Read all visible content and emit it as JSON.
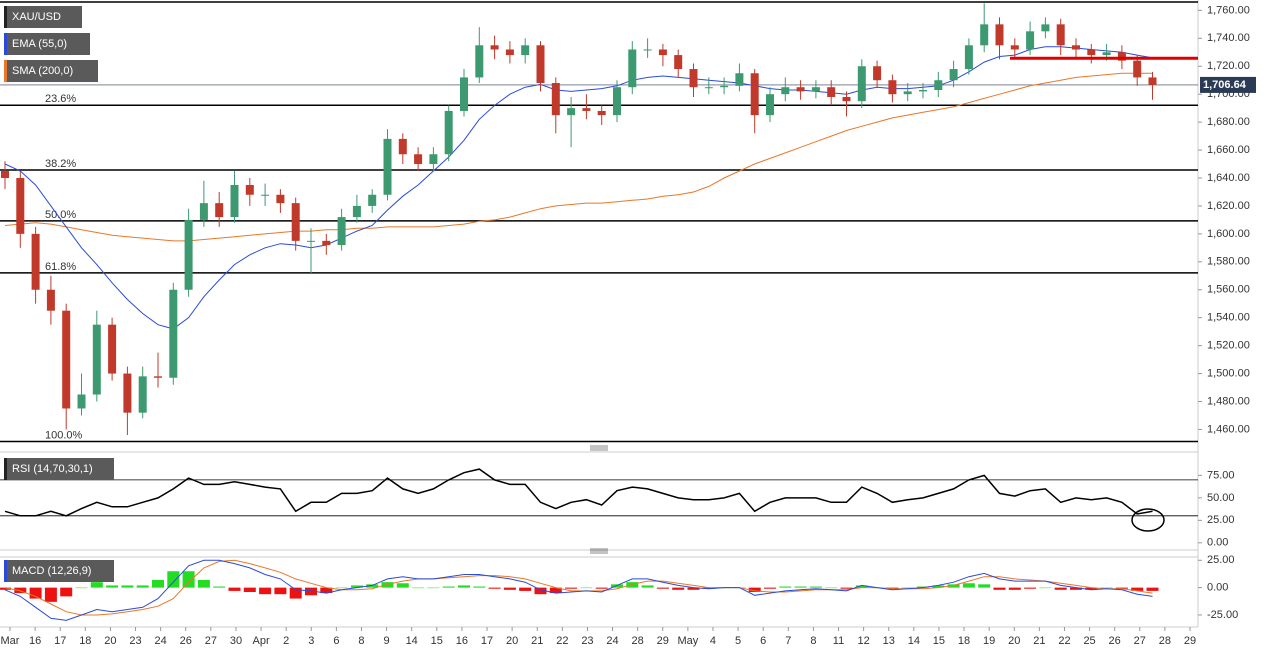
{
  "chart_data": {
    "type": "candlestick",
    "title": "XAU/USD",
    "up_color": "#3d9970",
    "down_color": "#c0392b",
    "ylim": [
      1451,
      1766
    ],
    "yticks": [
      {
        "value": 1460,
        "label": "1,460.00"
      },
      {
        "value": 1480,
        "label": "1,480.00"
      },
      {
        "value": 1500,
        "label": "1,500.00"
      },
      {
        "value": 1520,
        "label": "1,520.00"
      },
      {
        "value": 1540,
        "label": "1,540.00"
      },
      {
        "value": 1560,
        "label": "1,560.00"
      },
      {
        "value": 1580,
        "label": "1,580.00"
      },
      {
        "value": 1600,
        "label": "1,600.00"
      },
      {
        "value": 1620,
        "label": "1,620.00"
      },
      {
        "value": 1640,
        "label": "1,640.00"
      },
      {
        "value": 1660,
        "label": "1,660.00"
      },
      {
        "value": 1680,
        "label": "1,680.00"
      },
      {
        "value": 1700,
        "label": "1,700.00"
      },
      {
        "value": 1720,
        "label": "1,720.00"
      },
      {
        "value": 1740,
        "label": "1,740.00"
      },
      {
        "value": 1760,
        "label": "1,760.00"
      }
    ],
    "categories": [
      "Mar",
      "16",
      "17",
      "18",
      "20",
      "23",
      "24",
      "26",
      "27",
      "30",
      "Apr",
      "2",
      "3",
      "6",
      "8",
      "9",
      "14",
      "15",
      "16",
      "17",
      "20",
      "21",
      "22",
      "23",
      "24",
      "28",
      "29",
      "May",
      "4",
      "5",
      "6",
      "7",
      "8",
      "11",
      "12",
      "13",
      "14",
      "15",
      "18",
      "19",
      "20",
      "21",
      "22",
      "25",
      "26",
      "27",
      "28",
      "29"
    ],
    "last_price": {
      "value": 1706.64,
      "label": "1,706.64"
    },
    "resistance": {
      "value": 1725.7,
      "color": "#e00000"
    },
    "fib_levels": [
      {
        "value": 1766
      },
      {
        "value": 1692.1,
        "label": "23.6%"
      },
      {
        "value": 1645.7,
        "label": "38.2%"
      },
      {
        "value": 1609.3,
        "label": "50.0%"
      },
      {
        "value": 1572.1,
        "label": "61.8%"
      },
      {
        "value": 1451.4,
        "label": "100.0%"
      }
    ],
    "candles": [
      [
        1645,
        1652,
        1632,
        1640
      ],
      [
        1640,
        1645,
        1590,
        1600
      ],
      [
        1600,
        1605,
        1550,
        1560
      ],
      [
        1560,
        1570,
        1535,
        1545
      ],
      [
        1545,
        1550,
        1460,
        1475
      ],
      [
        1475,
        1500,
        1470,
        1485
      ],
      [
        1485,
        1545,
        1480,
        1535
      ],
      [
        1535,
        1540,
        1495,
        1500
      ],
      [
        1500,
        1505,
        1456,
        1472
      ],
      [
        1472,
        1505,
        1468,
        1498
      ],
      [
        1498,
        1515,
        1490,
        1497
      ],
      [
        1497,
        1565,
        1492,
        1560
      ],
      [
        1560,
        1618,
        1555,
        1610
      ],
      [
        1610,
        1638,
        1605,
        1622
      ],
      [
        1622,
        1630,
        1605,
        1612
      ],
      [
        1612,
        1645,
        1608,
        1635
      ],
      [
        1635,
        1640,
        1620,
        1628
      ],
      [
        1628,
        1636,
        1620,
        1628
      ],
      [
        1628,
        1632,
        1615,
        1622
      ],
      [
        1622,
        1626,
        1588,
        1595
      ],
      [
        1595,
        1604,
        1572,
        1595
      ],
      [
        1595,
        1600,
        1585,
        1592
      ],
      [
        1592,
        1618,
        1588,
        1612
      ],
      [
        1612,
        1628,
        1608,
        1620
      ],
      [
        1620,
        1632,
        1615,
        1628
      ],
      [
        1628,
        1675,
        1624,
        1668
      ],
      [
        1668,
        1672,
        1650,
        1657
      ],
      [
        1657,
        1662,
        1645,
        1650
      ],
      [
        1650,
        1662,
        1645,
        1657
      ],
      [
        1657,
        1692,
        1652,
        1688
      ],
      [
        1688,
        1718,
        1684,
        1712
      ],
      [
        1712,
        1748,
        1708,
        1735
      ],
      [
        1735,
        1742,
        1725,
        1732
      ],
      [
        1732,
        1738,
        1722,
        1728
      ],
      [
        1728,
        1740,
        1722,
        1735
      ],
      [
        1735,
        1738,
        1702,
        1708
      ],
      [
        1708,
        1712,
        1672,
        1685
      ],
      [
        1685,
        1698,
        1662,
        1690
      ],
      [
        1690,
        1700,
        1682,
        1688
      ],
      [
        1688,
        1692,
        1678,
        1685
      ],
      [
        1685,
        1710,
        1680,
        1705
      ],
      [
        1705,
        1738,
        1700,
        1732
      ],
      [
        1732,
        1740,
        1726,
        1732
      ],
      [
        1732,
        1736,
        1720,
        1728
      ],
      [
        1728,
        1732,
        1712,
        1718
      ],
      [
        1718,
        1722,
        1698,
        1705
      ],
      [
        1705,
        1712,
        1700,
        1705
      ],
      [
        1705,
        1712,
        1700,
        1706
      ],
      [
        1706,
        1722,
        1702,
        1715
      ],
      [
        1715,
        1718,
        1672,
        1685
      ],
      [
        1685,
        1705,
        1680,
        1700
      ],
      [
        1700,
        1712,
        1695,
        1705
      ],
      [
        1705,
        1710,
        1696,
        1702
      ],
      [
        1702,
        1710,
        1697,
        1705
      ],
      [
        1705,
        1710,
        1692,
        1698
      ],
      [
        1698,
        1702,
        1684,
        1695
      ],
      [
        1695,
        1725,
        1690,
        1720
      ],
      [
        1720,
        1724,
        1705,
        1710
      ],
      [
        1710,
        1714,
        1694,
        1700
      ],
      [
        1700,
        1708,
        1695,
        1702
      ],
      [
        1702,
        1708,
        1697,
        1703
      ],
      [
        1703,
        1716,
        1698,
        1710
      ],
      [
        1710,
        1724,
        1705,
        1718
      ],
      [
        1718,
        1740,
        1714,
        1735
      ],
      [
        1735,
        1765,
        1730,
        1750
      ],
      [
        1750,
        1755,
        1725,
        1735
      ],
      [
        1735,
        1740,
        1726,
        1732
      ],
      [
        1732,
        1752,
        1728,
        1745
      ],
      [
        1745,
        1755,
        1740,
        1750
      ],
      [
        1750,
        1754,
        1728,
        1735
      ],
      [
        1735,
        1740,
        1726,
        1732
      ],
      [
        1732,
        1736,
        1722,
        1728
      ],
      [
        1728,
        1736,
        1724,
        1730
      ],
      [
        1730,
        1735,
        1718,
        1724
      ],
      [
        1724,
        1728,
        1706,
        1712
      ],
      [
        1712,
        1716,
        1696,
        1706.64
      ]
    ],
    "ema": {
      "name": "EMA (55,0)",
      "color": "#2a4bd7",
      "values": [
        1650,
        1645,
        1635,
        1620,
        1605,
        1590,
        1578,
        1565,
        1553,
        1543,
        1535,
        1532,
        1540,
        1555,
        1567,
        1578,
        1585,
        1590,
        1593,
        1592,
        1590,
        1592,
        1597,
        1602,
        1606,
        1617,
        1627,
        1635,
        1645,
        1655,
        1667,
        1682,
        1692,
        1700,
        1705,
        1707,
        1703,
        1702,
        1703,
        1704,
        1706,
        1710,
        1712,
        1713,
        1712,
        1711,
        1710,
        1709,
        1708,
        1706,
        1704,
        1703,
        1703,
        1702,
        1701,
        1700,
        1703,
        1705,
        1704,
        1704,
        1705,
        1706,
        1710,
        1716,
        1723,
        1727,
        1728,
        1732,
        1734,
        1734,
        1733,
        1732,
        1731,
        1730,
        1728,
        1726
      ]
    },
    "sma": {
      "name": "SMA (200,0)",
      "color": "#e8782a",
      "values": [
        1606,
        1607,
        1608,
        1607,
        1605,
        1603,
        1601,
        1599,
        1598,
        1597,
        1596,
        1595,
        1595,
        1596,
        1597,
        1598,
        1599,
        1600,
        1601,
        1602,
        1602,
        1603,
        1603,
        1604,
        1604,
        1605,
        1605,
        1605,
        1605,
        1606,
        1607,
        1609,
        1610,
        1612,
        1615,
        1618,
        1620,
        1621,
        1622,
        1622,
        1623,
        1624,
        1625,
        1627,
        1628,
        1630,
        1634,
        1640,
        1645,
        1650,
        1654,
        1658,
        1662,
        1666,
        1670,
        1674,
        1677,
        1680,
        1683,
        1685,
        1687,
        1689,
        1691,
        1694,
        1697,
        1700,
        1703,
        1706,
        1708,
        1710,
        1712,
        1713,
        1714,
        1715,
        1715,
        1715
      ]
    },
    "rsi": {
      "name": "RSI (14,70,30,1)",
      "color": "#000000",
      "ylim": [
        -8,
        101
      ],
      "levels": [
        70,
        30
      ],
      "yticks": [
        {
          "value": 0,
          "label": "0.00"
        },
        {
          "value": 25,
          "label": "25.00"
        },
        {
          "value": 50,
          "label": "50.00"
        },
        {
          "value": 75,
          "label": "75.00"
        }
      ],
      "values": [
        35,
        30,
        30,
        35,
        30,
        38,
        45,
        40,
        40,
        45,
        50,
        60,
        72,
        65,
        65,
        68,
        65,
        62,
        60,
        35,
        45,
        45,
        55,
        55,
        58,
        72,
        60,
        55,
        60,
        70,
        78,
        82,
        70,
        65,
        65,
        45,
        38,
        45,
        48,
        42,
        58,
        62,
        60,
        55,
        50,
        48,
        48,
        50,
        55,
        35,
        45,
        50,
        50,
        50,
        45,
        45,
        62,
        55,
        45,
        48,
        50,
        55,
        60,
        70,
        75,
        55,
        52,
        58,
        60,
        45,
        50,
        48,
        50,
        45,
        32,
        35
      ]
    },
    "macd": {
      "name": "MACD (12,26,9)",
      "ylim": [
        -36,
        28
      ],
      "macd_color": "#2a4bd7",
      "signal_color": "#e8782a",
      "pos_color": "#22dd22",
      "neg_color": "#ee1111",
      "yticks": [
        {
          "value": -25,
          "label": "-25.00"
        },
        {
          "value": 0,
          "label": "0.00"
        },
        {
          "value": 25,
          "label": "25.00"
        }
      ],
      "macd": [
        -2,
        -8,
        -18,
        -28,
        -30,
        -25,
        -20,
        -22,
        -20,
        -18,
        -10,
        5,
        20,
        25,
        25,
        22,
        18,
        12,
        8,
        -2,
        -3,
        -5,
        -2,
        0,
        2,
        8,
        10,
        8,
        8,
        10,
        12,
        12,
        10,
        8,
        5,
        -2,
        -5,
        -4,
        -3,
        -4,
        2,
        8,
        8,
        5,
        2,
        0,
        -1,
        0,
        0,
        -7,
        -5,
        -3,
        -2,
        -1,
        -2,
        -3,
        2,
        0,
        -2,
        -1,
        0,
        2,
        5,
        10,
        13,
        8,
        6,
        6,
        6,
        2,
        0,
        -2,
        -1,
        -2,
        -6,
        -8
      ],
      "signal": [
        0,
        -3,
        -8,
        -15,
        -22,
        -25,
        -25,
        -24,
        -22,
        -20,
        -17,
        -10,
        5,
        18,
        24,
        25,
        22,
        18,
        14,
        8,
        4,
        0,
        -2,
        -2,
        -1,
        3,
        6,
        8,
        8,
        9,
        10,
        11,
        11,
        10,
        8,
        4,
        0,
        -3,
        -3,
        -3,
        -1,
        3,
        6,
        6,
        4,
        2,
        0,
        0,
        0,
        -3,
        -4,
        -4,
        -3,
        -2,
        -2,
        -2,
        0,
        0,
        -1,
        -1,
        -1,
        0,
        2,
        6,
        10,
        10,
        8,
        7,
        6,
        4,
        2,
        0,
        -1,
        -1,
        -3,
        -5
      ],
      "histogram": [
        -2,
        -5,
        -10,
        -13,
        -8,
        0,
        5,
        2,
        2,
        2,
        7,
        15,
        15,
        7,
        1,
        -3,
        -4,
        -6,
        -6,
        -10,
        -7,
        -5,
        0,
        2,
        3,
        5,
        4,
        0,
        0,
        1,
        2,
        1,
        -1,
        -2,
        -3,
        -6,
        -5,
        -1,
        0,
        -1,
        3,
        5,
        2,
        -1,
        -2,
        -2,
        -1,
        0,
        0,
        -4,
        -1,
        1,
        1,
        1,
        0,
        -1,
        2,
        0,
        -1,
        0,
        1,
        2,
        3,
        4,
        3,
        -2,
        -2,
        -1,
        0,
        -2,
        -2,
        -2,
        0,
        -1,
        -3,
        -3
      ]
    }
  }
}
